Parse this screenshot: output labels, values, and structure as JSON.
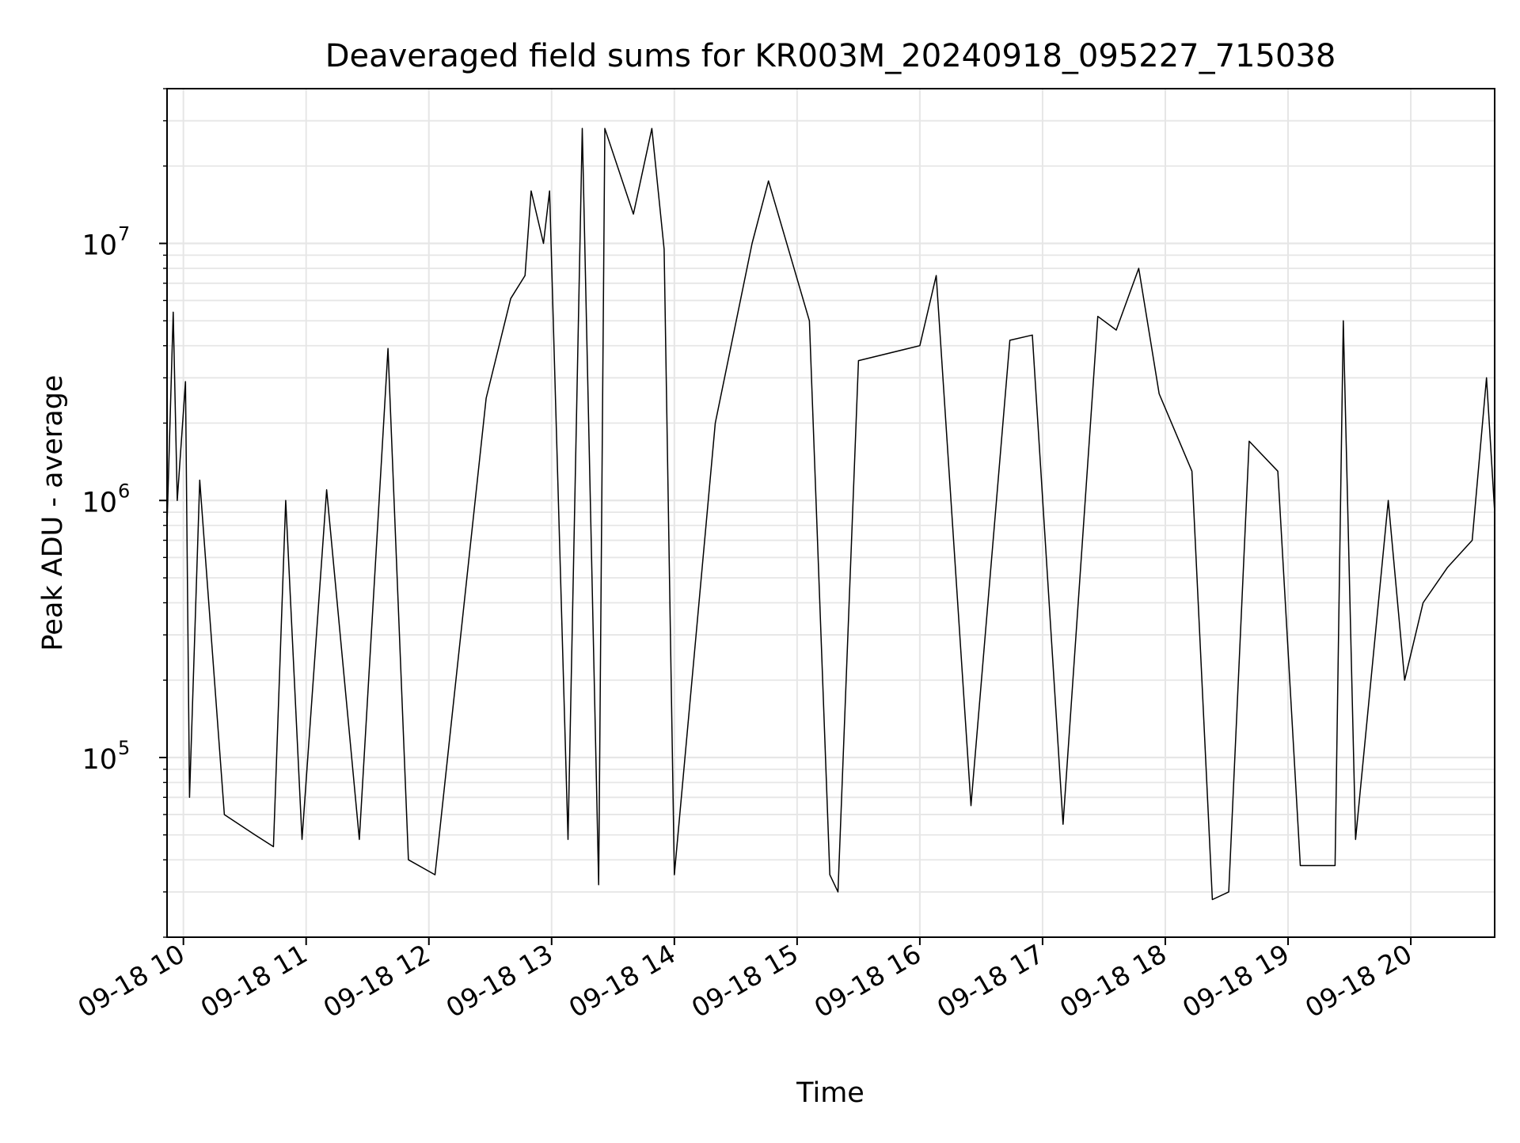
{
  "chart_data": {
    "type": "line",
    "title": "Deaveraged field sums for KR003M_20240918_095227_715038",
    "xlabel": "Time",
    "ylabel": "Peak ADU - average",
    "x_ticks": [
      "09-18 10",
      "09-18 11",
      "09-18 12",
      "09-18 13",
      "09-18 14",
      "09-18 15",
      "09-18 16",
      "09-18 17",
      "09-18 18",
      "09-18 19",
      "09-18 20"
    ],
    "y_ticks": [
      {
        "base": "10",
        "exp": "5",
        "value": 100000
      },
      {
        "base": "10",
        "exp": "6",
        "value": 1000000
      },
      {
        "base": "10",
        "exp": "7",
        "value": 10000000
      }
    ],
    "y_scale": "log",
    "xlim": [
      "2024-09-18 09:52",
      "2024-09-18 20:41"
    ],
    "ylim": [
      20000,
      40000000
    ],
    "grid": "major and minor",
    "line_color": "#000000",
    "series": [
      {
        "points": [
          [
            "2024-09-18 09:52",
            800000
          ],
          [
            "2024-09-18 09:55",
            5400000
          ],
          [
            "2024-09-18 09:57",
            1000000
          ],
          [
            "2024-09-18 10:01",
            2900000
          ],
          [
            "2024-09-18 10:03",
            70000
          ],
          [
            "2024-09-18 10:08",
            1200000
          ],
          [
            "2024-09-18 10:20",
            60000
          ],
          [
            "2024-09-18 10:35",
            50000
          ],
          [
            "2024-09-18 10:44",
            45000
          ],
          [
            "2024-09-18 10:50",
            1000000
          ],
          [
            "2024-09-18 10:58",
            48000
          ],
          [
            "2024-09-18 11:10",
            1100000
          ],
          [
            "2024-09-18 11:26",
            48000
          ],
          [
            "2024-09-18 11:40",
            3900000
          ],
          [
            "2024-09-18 11:50",
            40000
          ],
          [
            "2024-09-18 12:03",
            35000
          ],
          [
            "2024-09-18 12:28",
            2500000
          ],
          [
            "2024-09-18 12:40",
            6100000
          ],
          [
            "2024-09-18 12:47",
            7500000
          ],
          [
            "2024-09-18 12:50",
            16000000
          ],
          [
            "2024-09-18 12:56",
            10000000
          ],
          [
            "2024-09-18 12:59",
            16000000
          ],
          [
            "2024-09-18 13:08",
            48000
          ],
          [
            "2024-09-18 13:15",
            28000000
          ],
          [
            "2024-09-18 13:23",
            32000
          ],
          [
            "2024-09-18 13:26",
            28000000
          ],
          [
            "2024-09-18 13:40",
            13000000
          ],
          [
            "2024-09-18 13:49",
            28000000
          ],
          [
            "2024-09-18 13:55",
            9500000
          ],
          [
            "2024-09-18 14:00",
            35000
          ],
          [
            "2024-09-18 14:20",
            2000000
          ],
          [
            "2024-09-18 14:38",
            10000000
          ],
          [
            "2024-09-18 14:46",
            17500000
          ],
          [
            "2024-09-18 15:06",
            5000000
          ],
          [
            "2024-09-18 15:16",
            35000
          ],
          [
            "2024-09-18 15:20",
            30000
          ],
          [
            "2024-09-18 15:30",
            3500000
          ],
          [
            "2024-09-18 16:00",
            4000000
          ],
          [
            "2024-09-18 16:08",
            7500000
          ],
          [
            "2024-09-18 16:25",
            65000
          ],
          [
            "2024-09-18 16:44",
            4200000
          ],
          [
            "2024-09-18 16:55",
            4400000
          ],
          [
            "2024-09-18 17:10",
            55000
          ],
          [
            "2024-09-18 17:27",
            5200000
          ],
          [
            "2024-09-18 17:36",
            4600000
          ],
          [
            "2024-09-18 17:47",
            8000000
          ],
          [
            "2024-09-18 17:57",
            2600000
          ],
          [
            "2024-09-18 18:13",
            1300000
          ],
          [
            "2024-09-18 18:23",
            28000
          ],
          [
            "2024-09-18 18:31",
            30000
          ],
          [
            "2024-09-18 18:41",
            1700000
          ],
          [
            "2024-09-18 18:55",
            1300000
          ],
          [
            "2024-09-18 19:06",
            38000
          ],
          [
            "2024-09-18 19:23",
            38000
          ],
          [
            "2024-09-18 19:27",
            5000000
          ],
          [
            "2024-09-18 19:33",
            48000
          ],
          [
            "2024-09-18 19:49",
            1000000
          ],
          [
            "2024-09-18 19:57",
            200000
          ],
          [
            "2024-09-18 20:06",
            400000
          ],
          [
            "2024-09-18 20:18",
            550000
          ],
          [
            "2024-09-18 20:30",
            700000
          ],
          [
            "2024-09-18 20:37",
            3000000
          ],
          [
            "2024-09-18 20:41",
            900000
          ]
        ]
      }
    ]
  }
}
